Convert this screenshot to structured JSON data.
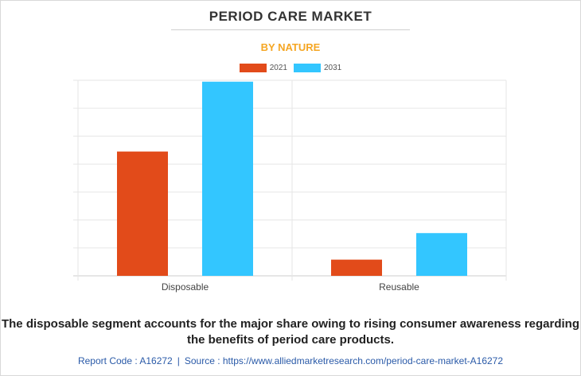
{
  "header": {
    "title": "PERIOD CARE MARKET",
    "subtitle": "BY NATURE"
  },
  "colors": {
    "series_2021": "#e24b1a",
    "series_2031": "#33c6ff",
    "subtitle": "#f5a623"
  },
  "chart_data": {
    "type": "bar",
    "title": "PERIOD CARE MARKET",
    "subtitle": "BY NATURE",
    "categories": [
      "Disposable",
      "Reusable"
    ],
    "series": [
      {
        "name": "2021",
        "values": [
          44.5,
          5.8
        ]
      },
      {
        "name": "2031",
        "values": [
          69.5,
          15.3
        ]
      }
    ],
    "xlabel": "",
    "ylabel": "",
    "ylim": [
      0,
      70
    ],
    "grid": true,
    "legend": "top-center"
  },
  "caption": "The disposable segment accounts for the major share owing to rising consumer awareness regarding the benefits of period care products.",
  "footer": {
    "report_code": "Report Code : A16272",
    "separator": "|",
    "source": "Source : https://www.alliedmarketresearch.com/period-care-market-A16272"
  }
}
